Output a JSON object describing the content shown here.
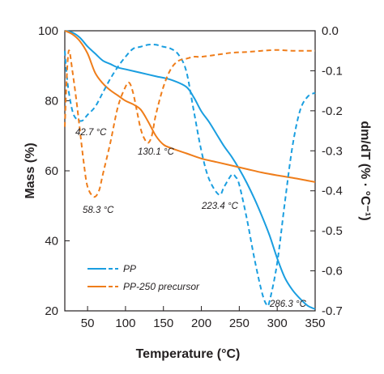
{
  "chart_data": {
    "type": "line",
    "xlabel": "Temperature (°C)",
    "ylabel": "Mass (%)",
    "y2label": "dm/dT (% · °C⁻¹)",
    "xlim": [
      20,
      350
    ],
    "ylim": [
      20,
      100
    ],
    "y2lim": [
      -0.7,
      0.0
    ],
    "xticks": [
      50,
      100,
      150,
      200,
      250,
      300,
      350
    ],
    "yticks": [
      20,
      40,
      60,
      80,
      100
    ],
    "y2ticks": [
      0.0,
      -0.1,
      -0.2,
      -0.3,
      -0.4,
      -0.5,
      -0.6,
      -0.7
    ],
    "y2tick_labels": [
      "0.0",
      "-0.1",
      "-0.2",
      "-0.3",
      "-0.4",
      "-0.5",
      "-0.6",
      "-0.7"
    ],
    "legend_position": "bottom-left",
    "colors": {
      "PP": "#1a9ee0",
      "PP-250 precursor": "#ef7d1a"
    },
    "series": [
      {
        "name": "PP",
        "axis": "left",
        "style": "solid",
        "x": [
          20,
          30,
          40,
          50,
          60,
          70,
          80,
          90,
          100,
          120,
          140,
          160,
          180,
          190,
          200,
          210,
          220,
          230,
          240,
          250,
          260,
          270,
          280,
          290,
          300,
          310,
          320,
          330,
          340,
          350
        ],
        "y": [
          100,
          99.5,
          98,
          95.5,
          93.5,
          91.5,
          90.5,
          89.5,
          89,
          88,
          87,
          86,
          84,
          81,
          77,
          74,
          70.5,
          67,
          64,
          60.5,
          56.5,
          52,
          47,
          41.5,
          35,
          29.5,
          26,
          23.5,
          21.5,
          20.5
        ]
      },
      {
        "name": "PP-250 precursor",
        "axis": "left",
        "style": "solid",
        "x": [
          20,
          30,
          40,
          50,
          60,
          70,
          80,
          90,
          100,
          110,
          120,
          130,
          140,
          150,
          160,
          180,
          200,
          220,
          240,
          260,
          280,
          300,
          320,
          340,
          350
        ],
        "y": [
          100,
          99,
          97,
          93.5,
          88,
          85,
          83,
          81.5,
          80,
          79,
          77.5,
          74,
          70,
          67.5,
          66.5,
          65,
          63.5,
          62.5,
          61.5,
          60.5,
          59.5,
          58.7,
          58,
          57.2,
          56.8
        ]
      },
      {
        "name": "PP",
        "axis": "right",
        "style": "dashed",
        "x": [
          20,
          22,
          25,
          30,
          35,
          42.7,
          50,
          60,
          70,
          80,
          90,
          100,
          110,
          120,
          130,
          140,
          150,
          160,
          170,
          180,
          190,
          200,
          210,
          223.4,
          230,
          240,
          245,
          250,
          260,
          270,
          280,
          286.3,
          290,
          300,
          310,
          320,
          330,
          340,
          350
        ],
        "y": [
          -0.05,
          -0.1,
          -0.15,
          -0.2,
          -0.22,
          -0.225,
          -0.21,
          -0.19,
          -0.155,
          -0.12,
          -0.09,
          -0.065,
          -0.045,
          -0.04,
          -0.035,
          -0.035,
          -0.04,
          -0.045,
          -0.06,
          -0.1,
          -0.2,
          -0.3,
          -0.37,
          -0.41,
          -0.39,
          -0.36,
          -0.365,
          -0.385,
          -0.47,
          -0.57,
          -0.655,
          -0.685,
          -0.675,
          -0.58,
          -0.43,
          -0.29,
          -0.2,
          -0.165,
          -0.155
        ]
      },
      {
        "name": "PP-250 precursor",
        "axis": "right",
        "style": "dashed",
        "x": [
          20,
          22,
          24,
          26,
          30,
          35,
          40,
          45,
          50,
          58.3,
          65,
          70,
          80,
          90,
          100,
          105,
          110,
          115,
          120,
          125,
          130.1,
          135,
          140,
          150,
          160,
          170,
          180,
          190,
          200,
          220,
          240,
          260,
          280,
          300,
          320,
          340,
          350
        ],
        "y": [
          -0.24,
          -0.14,
          -0.07,
          -0.05,
          -0.1,
          -0.17,
          -0.25,
          -0.33,
          -0.39,
          -0.415,
          -0.4,
          -0.36,
          -0.28,
          -0.19,
          -0.14,
          -0.13,
          -0.155,
          -0.2,
          -0.245,
          -0.27,
          -0.28,
          -0.26,
          -0.21,
          -0.14,
          -0.095,
          -0.075,
          -0.07,
          -0.065,
          -0.065,
          -0.06,
          -0.055,
          -0.053,
          -0.05,
          -0.048,
          -0.05,
          -0.05,
          -0.05
        ]
      }
    ],
    "annotations": [
      {
        "text": "42.7 °C"
      },
      {
        "text": "58.3 °C"
      },
      {
        "text": "130.1 °C"
      },
      {
        "text": "223.4 °C"
      },
      {
        "text": "286.3 °C"
      }
    ]
  }
}
